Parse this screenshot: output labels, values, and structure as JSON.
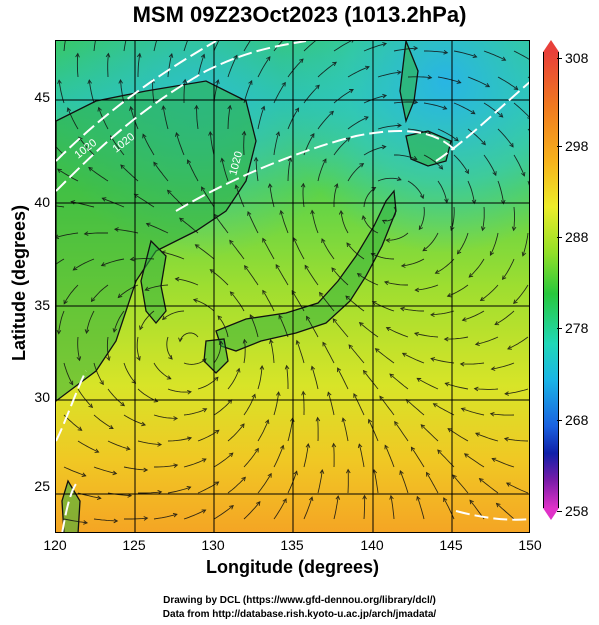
{
  "title": "MSM 09Z23Oct2023 (1013.2hPa)",
  "axes": {
    "xlabel": "Longitude (degrees)",
    "ylabel": "Latitude  (degrees)",
    "x_ticks": [
      "120",
      "125",
      "130",
      "135",
      "140",
      "145",
      "150"
    ],
    "y_ticks": [
      "45",
      "40",
      "35",
      "30",
      "25"
    ]
  },
  "map": {
    "lon_range": [
      120,
      150
    ],
    "lat_range": [
      22.4,
      47.6
    ],
    "grid": true,
    "contour_labels": [
      "1020",
      "1020",
      "1020"
    ]
  },
  "colorbar": {
    "labels": [
      "308",
      "298",
      "288",
      "278",
      "268",
      "258"
    ]
  },
  "credits": {
    "line1": "Drawing by DCL (https://www.gfd-dennou.org/library/dcl/)",
    "line2": "Data from http://database.rish.kyoto-u.ac.jp/arch/jmadata/"
  }
}
